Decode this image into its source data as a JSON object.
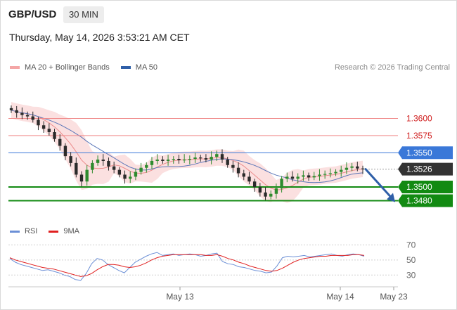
{
  "header": {
    "symbol": "GBP/USD",
    "timeframe": "30 MIN",
    "datetime": "Thursday, May 14, 2026 3:53:21 AM CET"
  },
  "legend": {
    "ma_bb_label": "MA 20 + Bollinger Bands",
    "ma50_label": "MA 50",
    "research": "Research © 2026 Trading Central"
  },
  "rsi_legend": {
    "rsi_label": "RSI",
    "ma_label": "9MA"
  },
  "colors": {
    "bb": "#f4a6a6",
    "ma50": "#2f5fa8",
    "rsi": "#6b8fd6",
    "ma9": "#e02020",
    "support": "#128a12",
    "resistance": "#f08a8a",
    "pivot": "#3a78d8",
    "current": "#333333",
    "candle_up": "#2e8b2e",
    "candle_down": "#2b2b2b"
  },
  "chart_data": [
    {
      "type": "candlestick",
      "title": "GBP/USD",
      "timeframe": "30 MIN",
      "x_ticks": [
        "May 13",
        "May 14",
        "May 23"
      ],
      "levels": [
        {
          "label": "1.3600",
          "value": 1.36,
          "kind": "resistance"
        },
        {
          "label": "1.3575",
          "value": 1.3575,
          "kind": "resistance"
        },
        {
          "label": "1.3550",
          "value": 1.355,
          "kind": "pivot"
        },
        {
          "label": "1.3526",
          "value": 1.3526,
          "kind": "current"
        },
        {
          "label": "1.3500",
          "value": 1.35,
          "kind": "support"
        },
        {
          "label": "1.3480",
          "value": 1.348,
          "kind": "support"
        }
      ],
      "ylim": [
        1.346,
        1.366
      ],
      "close_path": [
        1.3612,
        1.3608,
        1.3605,
        1.3603,
        1.3598,
        1.359,
        1.3585,
        1.358,
        1.357,
        1.356,
        1.3545,
        1.3535,
        1.3518,
        1.3508,
        1.3525,
        1.3535,
        1.354,
        1.3538,
        1.353,
        1.3525,
        1.3518,
        1.3512,
        1.3515,
        1.3522,
        1.3528,
        1.3532,
        1.3538,
        1.354,
        1.3538,
        1.354,
        1.3541,
        1.3539,
        1.354,
        1.3541,
        1.3543,
        1.3542,
        1.354,
        1.3544,
        1.3548,
        1.354,
        1.3532,
        1.3528,
        1.352,
        1.3515,
        1.3508,
        1.35,
        1.3492,
        1.3486,
        1.349,
        1.3498,
        1.3512,
        1.3515,
        1.3512,
        1.3515,
        1.3517,
        1.3514,
        1.3516,
        1.3518,
        1.3519,
        1.352,
        1.3522,
        1.3525,
        1.3528,
        1.353,
        1.3527,
        1.3526
      ],
      "series": [
        {
          "name": "MA 20 + Bollinger Bands"
        },
        {
          "name": "MA 50"
        }
      ],
      "projection": {
        "from": 1.3526,
        "to": 1.348,
        "direction": "down"
      }
    },
    {
      "type": "line",
      "title": "RSI",
      "y_ticks": [
        70,
        50,
        30
      ],
      "ylim": [
        20,
        75
      ],
      "series": [
        {
          "name": "RSI",
          "values": [
            52,
            47,
            44,
            42,
            40,
            38,
            36,
            37,
            35,
            33,
            30,
            28,
            24,
            23,
            32,
            45,
            52,
            50,
            44,
            40,
            36,
            33,
            40,
            47,
            51,
            55,
            58,
            60,
            56,
            57,
            58,
            56,
            57,
            58,
            57,
            55,
            56,
            58,
            59,
            48,
            45,
            44,
            41,
            40,
            38,
            36,
            35,
            33,
            34,
            42,
            53,
            55,
            54,
            55,
            56,
            54,
            55,
            56,
            57,
            58,
            56,
            55,
            57,
            58,
            57,
            55
          ]
        },
        {
          "name": "9MA",
          "values": [
            53,
            50,
            48,
            46,
            44,
            42,
            40,
            39,
            38,
            36,
            34,
            32,
            30,
            28,
            29,
            32,
            37,
            41,
            44,
            44,
            43,
            41,
            40,
            41,
            43,
            46,
            50,
            53,
            55,
            56,
            57,
            57,
            57,
            57,
            57,
            57,
            56,
            56,
            57,
            55,
            52,
            50,
            47,
            45,
            42,
            40,
            38,
            36,
            35,
            36,
            39,
            43,
            47,
            50,
            52,
            53,
            54,
            55,
            55,
            56,
            56,
            56,
            56,
            57,
            57,
            56
          ]
        }
      ]
    }
  ]
}
